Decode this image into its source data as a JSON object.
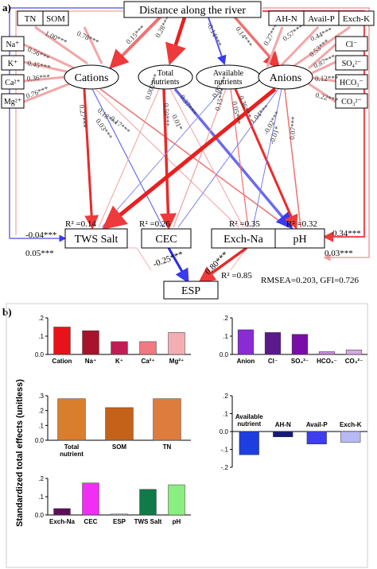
{
  "panel_a": {
    "label": "a)",
    "top_box": "Distance along the river",
    "left_boxes": [
      "TN",
      "SOM"
    ],
    "right_boxes": [
      "AH-N",
      "Avail-P",
      "Exch-K"
    ],
    "cation_ions": [
      "Na⁺",
      "K⁺",
      "Ca²⁺",
      "Mg²⁺"
    ],
    "anion_ions": [
      "Cl⁻",
      "SO₄²⁻",
      "HCO₃⁻",
      "CO₃²⁻"
    ],
    "latents": {
      "cations": "Cations",
      "total_nutrients_1": "Total",
      "total_nutrients_2": "nutrients",
      "available_1": "Available",
      "available_2": "nutrients",
      "anions": "Anions"
    },
    "outcomes": {
      "tws": "TWS Salt",
      "cec": "CEC",
      "exch": "Exch-Na",
      "ph": "pH",
      "esp": "ESP"
    },
    "r2": {
      "tws": "R² =0.14",
      "cec": "R² =0.26",
      "exch": "R² =0.35",
      "ph": "R² =0.32",
      "esp": "R² =0.85"
    },
    "coefficients": {
      "dist_cations": "0.15***",
      "dist_total": "0.28***",
      "dist_avail": "-0.14***",
      "dist_anions": "0.14***",
      "tn": "1.00***",
      "som": "0.78***",
      "ahn": "0.27***",
      "availp": "0.57***",
      "exchk": "0.44***",
      "na": "0.56***",
      "k": "0.45***",
      "ca": "0.36***",
      "mg": "0.76***",
      "cl": "0.53***",
      "so4": "0.87***",
      "hco3": "0.12***",
      "co3": "0.22***",
      "c1": "0.27***",
      "c2": "0.18***",
      "c3": "0.03***",
      "c4": "0.17***",
      "t1": "0.002***",
      "t2": "0.50***",
      "t3": "0.01*",
      "t4": "0.37***",
      "a1": "-0.07***",
      "a2": "0.15***",
      "a3": "0.05***",
      "a4": "0.36***",
      "n1": "1.04***",
      "n2": "-0.02***",
      "n3": "-0.01*",
      "n4": "0.07***",
      "dist_tws": "-0.04***",
      "dist_tws2": "0.05***",
      "dist_ph": "0.34***",
      "dist_ph2": "0.03***",
      "cec_esp": "-0.25***",
      "exch_esp": "0.80***"
    },
    "fit": "RMSEA=0.203, GFI=0.726"
  },
  "panel_b": {
    "label": "b)",
    "ylabel": "Standardized total effects (unitless)"
  },
  "chart_data": [
    {
      "type": "bar",
      "categories": [
        "Cation",
        "Na⁺",
        "K⁺",
        "Ca²⁺",
        "Mg²⁺"
      ],
      "values": [
        0.15,
        0.13,
        0.07,
        0.07,
        0.12
      ],
      "colors": [
        "#e8121b",
        "#a8122a",
        "#c21c54",
        "#f07a80",
        "#f4aeb2"
      ],
      "ylim": [
        0,
        0.2
      ],
      "yticks": [
        "0.0",
        ".1",
        ".2"
      ],
      "xlabel": "",
      "ylabel": ""
    },
    {
      "type": "bar",
      "categories": [
        "Anion",
        "Cl⁻",
        "SO₄²⁻",
        "HCO₃⁻",
        "CO₃²⁻"
      ],
      "values": [
        0.135,
        0.12,
        0.11,
        0.015,
        0.025
      ],
      "colors": [
        "#8a2bd6",
        "#5b1a8c",
        "#7a0ca8",
        "#c88ad6",
        "#d8a8e4"
      ],
      "ylim": [
        0,
        0.2
      ],
      "yticks": [
        "0.0",
        ".1",
        ".2"
      ],
      "xlabel": "",
      "ylabel": ""
    },
    {
      "type": "bar",
      "categories": [
        "Total nutrient",
        "SOM",
        "TN"
      ],
      "values": [
        0.28,
        0.22,
        0.28
      ],
      "colors": [
        "#d97e2c",
        "#c4621a",
        "#de7c3e"
      ],
      "ylim": [
        0,
        0.3
      ],
      "yticks": [
        "0.0",
        ".1",
        ".2",
        ".3"
      ],
      "xlabel": "",
      "ylabel": ""
    },
    {
      "type": "bar",
      "categories": [
        "Available nutrient",
        "AH-N",
        "Avail-P",
        "Exch-K"
      ],
      "values": [
        -0.13,
        -0.03,
        -0.07,
        -0.06
      ],
      "colors": [
        "#1f3ee0",
        "#151a7a",
        "#3e3ef0",
        "#b8b8f4"
      ],
      "ylim": [
        -0.2,
        0.2
      ],
      "yticks": [
        "-.2",
        "-.1",
        "0.0",
        ".1",
        ".2"
      ],
      "xlabel": "",
      "ylabel": ""
    },
    {
      "type": "bar",
      "categories": [
        "Exch-Na",
        "CEC",
        "ESP",
        "TWS Salt",
        "pH"
      ],
      "values": [
        0.035,
        0.175,
        0.005,
        0.14,
        0.165
      ],
      "colors": [
        "#5e0f5a",
        "#f02ef4",
        "#b0b0e0",
        "#0f7a4a",
        "#8aee80"
      ],
      "ylim": [
        0,
        0.2
      ],
      "yticks": [
        "0.0",
        ".1",
        ".2"
      ],
      "xlabel": "",
      "ylabel": ""
    }
  ]
}
